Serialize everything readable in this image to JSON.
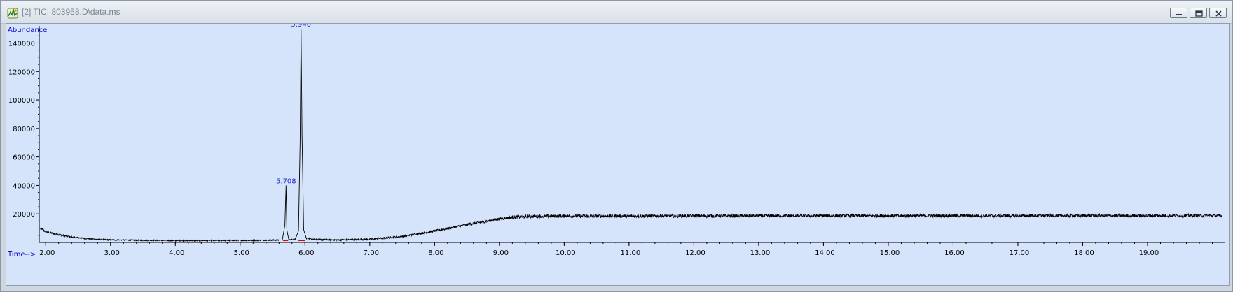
{
  "window": {
    "title": "[2] TIC: 803958.D\\data.ms",
    "icons": [
      "chromatogram-app-icon",
      "minimize-icon",
      "restore-icon",
      "close-icon"
    ]
  },
  "colors": {
    "plot_background": "#d5e4fa",
    "trace": "#000000",
    "axis_label": "#0000cc",
    "peak_label": "#1f2fcf",
    "baseline_marker": "#cc0000"
  },
  "chart_data": {
    "type": "line",
    "title": "",
    "ylabel": "Abundance",
    "xlabel": "Time-->",
    "xlim": [
      1.9,
      20.2
    ],
    "ylim": [
      0,
      152000
    ],
    "x_ticks": [
      "2.00",
      "3.00",
      "4.00",
      "5.00",
      "6.00",
      "7.00",
      "8.00",
      "9.00",
      "10.00",
      "11.00",
      "12.00",
      "13.00",
      "14.00",
      "15.00",
      "16.00",
      "17.00",
      "18.00",
      "19.00"
    ],
    "y_ticks": [
      "20000",
      "40000",
      "60000",
      "80000",
      "100000",
      "120000",
      "140000"
    ],
    "grid": false,
    "legend": "none",
    "series": [
      {
        "x": [
          1.92,
          2.0,
          2.2,
          2.4,
          2.6,
          2.8,
          3.0,
          3.5,
          4.0,
          4.5,
          5.0,
          5.5,
          5.65,
          5.69,
          5.708,
          5.72,
          5.75,
          5.85,
          5.9,
          5.925,
          5.94,
          5.955,
          5.98,
          6.02,
          6.2,
          6.5,
          7.0,
          7.5,
          8.0,
          8.5,
          9.0,
          9.2,
          9.5,
          10.0,
          11.0,
          12.0,
          13.0,
          14.0,
          15.0,
          16.0,
          17.0,
          18.0,
          19.0,
          20.15
        ],
        "y": [
          10000,
          7500,
          5500,
          3800,
          2800,
          2200,
          1800,
          1500,
          1300,
          1300,
          1400,
          1600,
          1700,
          12000,
          40000,
          9000,
          2000,
          2200,
          8000,
          70000,
          150000,
          75000,
          9000,
          3000,
          2000,
          1800,
          2200,
          4200,
          8000,
          12500,
          16500,
          17700,
          18300,
          18500,
          18500,
          18600,
          18600,
          18700,
          18700,
          18700,
          18700,
          18800,
          18800,
          18800
        ]
      }
    ],
    "annotations": [
      {
        "text": "5.708",
        "x": 5.708,
        "y": 40000
      },
      {
        "text": "5.940",
        "x": 5.94,
        "y": 150000
      }
    ]
  }
}
